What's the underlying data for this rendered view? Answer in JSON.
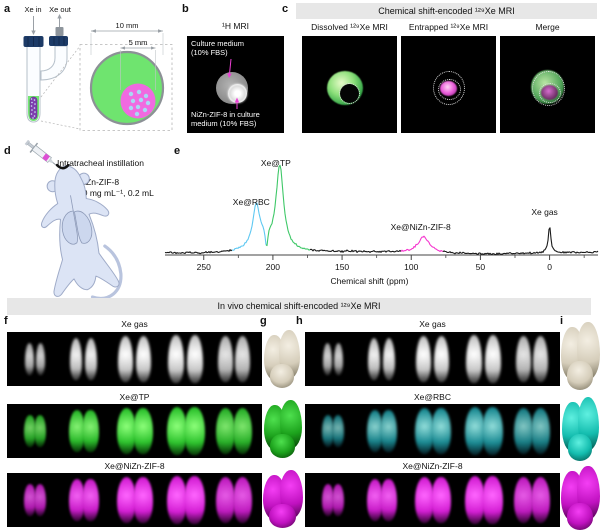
{
  "panels": {
    "a": {
      "letter": "a",
      "xe_in": "Xe in",
      "xe_out": "Xe out",
      "outer_diameter": "10 mm",
      "inner_diameter": "5 mm"
    },
    "b": {
      "letter": "b",
      "title": "¹H MRI",
      "label_top": "Culture medium\n(10% FBS)",
      "label_bottom": "NiZn-ZIF-8 in culture\nmedium (10% FBS)"
    },
    "c": {
      "letter": "c",
      "band_title": "Chemical shift-encoded ¹²⁹Xe MRI",
      "images": [
        {
          "title": "Dissolved ¹²⁹Xe MRI"
        },
        {
          "title": "Entrapped ¹²⁹Xe MRI"
        },
        {
          "title": "Merge"
        }
      ]
    },
    "d": {
      "letter": "d",
      "procedure": "Intratracheal instillation",
      "agent": "NiZn-ZIF-8",
      "dose": "20 mg mL⁻¹, 0.2 mL"
    },
    "e": {
      "letter": "e"
    }
  },
  "chart_data": {
    "type": "line",
    "xlabel": "Chemical shift (ppm)",
    "x_ticks": [
      250,
      200,
      150,
      100,
      50,
      0
    ],
    "x_minor_ticks": [
      225,
      175,
      125,
      75,
      25,
      -25
    ],
    "x_range_ppm": [
      278,
      -35
    ],
    "axis_reversed": true,
    "grid": false,
    "line_color": "#1a1a1a",
    "peaks": [
      {
        "label": "Xe@RBC",
        "ppm": 212,
        "rel_intensity": 40,
        "width_ppm": 6,
        "color": "#5fc8f2",
        "colored_span_ppm": [
          229,
          204.6
        ]
      },
      {
        "label": "Xe@TP",
        "ppm": 195,
        "rel_intensity": 83,
        "width_ppm": 6.5,
        "color": "#3fc868",
        "colored_span_ppm": [
          204.6,
          173
        ]
      },
      {
        "label": "Xe@NiZn-ZIF-8",
        "ppm": 91,
        "rel_intensity": 16,
        "width_ppm": 10,
        "color": "#f537ce",
        "colored_span_ppm": [
          107,
          77
        ]
      },
      {
        "label": "Xe gas",
        "ppm": 0,
        "rel_intensity": 27,
        "width_ppm": 2.2,
        "color": "#1a1a1a",
        "colored_span_ppm": null
      }
    ],
    "dip": {
      "ppm": 204.6,
      "depth": 17,
      "width_ppm": 2.4
    },
    "baseline_hump": {
      "ppm": 207,
      "height": 10,
      "width_ppm": 22
    }
  },
  "in_vivo": {
    "band_title": "In vivo chemical shift-encoded ¹²⁹Xe MRI",
    "slices_per_strip": 5,
    "left": {
      "letter": "f",
      "render_letter": "g",
      "rows": [
        {
          "label": "Xe gas",
          "palette": "gray"
        },
        {
          "label": "Xe@TP",
          "palette": "green"
        },
        {
          "label": "Xe@NiZn-ZIF-8",
          "palette": "magenta"
        }
      ]
    },
    "right": {
      "letter": "h",
      "render_letter": "i",
      "rows": [
        {
          "label": "Xe gas",
          "palette": "gray"
        },
        {
          "label": "Xe@RBC",
          "palette": "cyan"
        },
        {
          "label": "Xe@NiZn-ZIF-8",
          "palette": "magenta"
        }
      ]
    }
  },
  "colors": {
    "band_bg": "#e7e7e7",
    "mri_bg": "#000000",
    "annotation_magenta": "#ee3fd6",
    "phantom_green": "#6fe46f",
    "phantom_pink": "#f06ae0",
    "palettes": {
      "gray": {
        "bright": "#ffffff",
        "mid": "#c6c6c6",
        "dark": "#4f4f4f"
      },
      "green": {
        "bright": "#8dff7a",
        "mid": "#2ec32e",
        "dark": "#0c4c0c"
      },
      "magenta": {
        "bright": "#ff66ff",
        "mid": "#d41fd4",
        "dark": "#4d084d"
      },
      "cyan": {
        "bright": "#9ef0ec",
        "mid": "#1e97a0",
        "dark": "#0a343c"
      }
    },
    "render_palettes": {
      "gray": {
        "bright": "#f3eee2",
        "mid": "#d5cdba",
        "dark": "#7b745f"
      },
      "green": {
        "bright": "#4ee04e",
        "mid": "#1ca21c",
        "dark": "#063f06"
      },
      "magenta": {
        "bright": "#f43ef4",
        "mid": "#c011c0",
        "dark": "#4c044c"
      },
      "cyan": {
        "bright": "#5ff0e0",
        "mid": "#13bcae",
        "dark": "#05564e"
      }
    }
  }
}
